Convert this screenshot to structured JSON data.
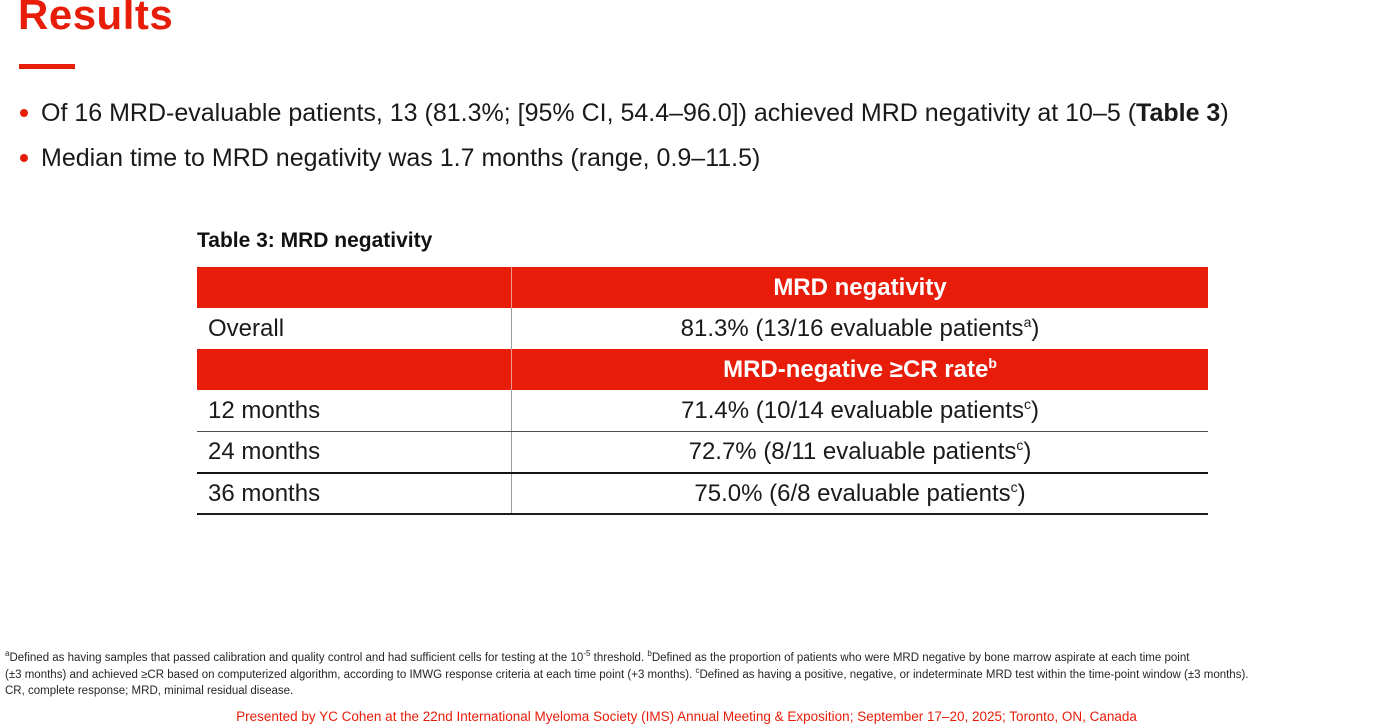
{
  "colors": {
    "accent_red": "#e71d0a",
    "table_header_bg": "#e71d0a",
    "text": "#1a1a1a"
  },
  "header": {
    "title": "Results"
  },
  "bullets": [
    {
      "pre": "Of 16 MRD-evaluable patients, 13 (81.3%; [95% CI, 54.4–96.0]) achieved MRD negativity at 10–5 (",
      "bold": "Table 3",
      "post": ")"
    },
    {
      "pre": "Median time to MRD negativity was 1.7 months (range, 0.9–11.5)",
      "bold": "",
      "post": ""
    }
  ],
  "table": {
    "title": "Table 3: MRD negativity",
    "header1": {
      "label": "",
      "value": "MRD negativity"
    },
    "header2": {
      "label": "",
      "value": "MRD-negative ≥CR rate",
      "sup": "b"
    },
    "rows": [
      {
        "label": "Overall",
        "value": "81.3% (13/16 evaluable patients",
        "sup": "a",
        "suffix": ")"
      },
      {
        "label": "12 months",
        "value": "71.4% (10/14 evaluable patients",
        "sup": "c",
        "suffix": ")"
      },
      {
        "label": "24 months",
        "value": "72.7% (8/11 evaluable patients",
        "sup": "c",
        "suffix": ")"
      },
      {
        "label": "36 months",
        "value": "75.0% (6/8 evaluable patients",
        "sup": "c",
        "suffix": ")"
      }
    ]
  },
  "footnotes": {
    "a_sup": "a",
    "a_text": "Defined as having samples that passed calibration and quality control and had sufficient cells for testing at the 10",
    "exp_sup": "-5",
    "a_text2": " threshold. ",
    "b_sup": "b",
    "b_text": "Defined as the proportion of patients who were MRD negative by bone marrow aspirate at each time point",
    "line2_text": "(±3 months) and achieved ≥CR based on computerized algorithm, according to IMWG response criteria at each time point (+3 months). ",
    "c_sup": "c",
    "c_text": "Defined as having a positive, negative, or indeterminate MRD test within the time-point window (±3 months).",
    "abbrev_line": "CR, complete response; MRD, minimal residual disease."
  },
  "footer": {
    "credit": "Presented by YC Cohen at the 22nd International Myeloma Society (IMS) Annual Meeting & Exposition; September 17–20, 2025; Toronto, ON, Canada"
  }
}
